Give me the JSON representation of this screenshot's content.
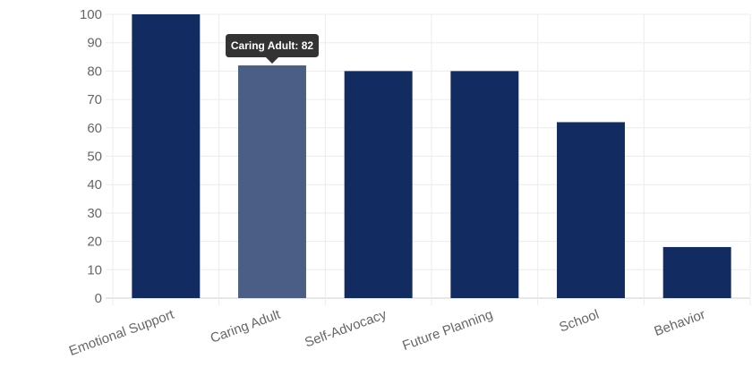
{
  "chart_data": {
    "type": "bar",
    "categories": [
      "Emotional Support",
      "Caring Adult",
      "Self-Advocacy",
      "Future Planning",
      "School",
      "Behavior"
    ],
    "values": [
      100,
      82,
      80,
      80,
      62,
      18
    ],
    "ylim": [
      0,
      100
    ],
    "yticks": [
      0,
      10,
      20,
      30,
      40,
      50,
      60,
      70,
      80,
      90,
      100
    ],
    "grid": true,
    "colors": {
      "bar": "#122b61",
      "bar_hover": "#4b5f86",
      "tooltip_bg": "#333333"
    },
    "tooltip": {
      "text": "Caring Adult: 82",
      "category_index": 1
    }
  }
}
